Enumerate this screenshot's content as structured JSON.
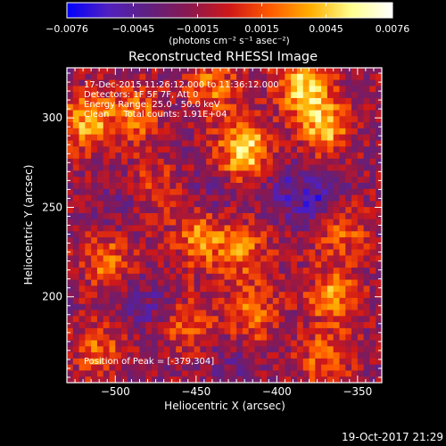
{
  "colorbar": {
    "ticks": [
      "−0.0076",
      "−0.0045",
      "−0.0015",
      "0.0015",
      "0.0045",
      "0.0076"
    ],
    "unit_label": "(photons cm⁻² s⁻¹ asec⁻²)"
  },
  "plot": {
    "title": "Reconstructed RHESSI Image",
    "annotations": [
      "17-Dec-2015 11:26:12.000 to 11:36:12.000",
      "Detectors: 1F 5F 7F, Att 0",
      "Energy Range: 25.0 - 50.0 keV",
      "Clean     Total counts: 1.91E+04"
    ],
    "peak_label": "Position of Peak = [-379,304]",
    "footer_date": "19-Oct-2017 21:29"
  },
  "chart_data": {
    "type": "heatmap",
    "title": "Reconstructed RHESSI Image",
    "xlabel": "Heliocentric X (arcsec)",
    "ylabel": "Heliocentric Y (arcsec)",
    "xlim": [
      -530,
      -335
    ],
    "ylim": [
      152,
      328
    ],
    "x_ticks": [
      -500,
      -450,
      -400,
      -350
    ],
    "x_tick_labels": [
      "−500",
      "−450",
      "−400",
      "−350"
    ],
    "y_ticks": [
      200,
      250,
      300
    ],
    "y_tick_labels": [
      "200",
      "250",
      "300"
    ],
    "color_range": [
      -0.0076,
      0.0076
    ],
    "colormap": [
      "#0000ff",
      "#5020c0",
      "#602080",
      "#8a1850",
      "#d01818",
      "#ff5a00",
      "#ffb000",
      "#ffff90",
      "#ffffff"
    ],
    "peak_position": [
      -379,
      304
    ],
    "sources": [
      {
        "x": -420,
        "y": 282,
        "intensity": 0.0072
      },
      {
        "x": -384,
        "y": 318,
        "intensity": 0.0068
      },
      {
        "x": -370,
        "y": 295,
        "intensity": 0.006
      },
      {
        "x": -517,
        "y": 298,
        "intensity": 0.0055
      },
      {
        "x": -487,
        "y": 302,
        "intensity": 0.004
      },
      {
        "x": -440,
        "y": 317,
        "intensity": 0.004
      },
      {
        "x": -447,
        "y": 233,
        "intensity": 0.005
      },
      {
        "x": -420,
        "y": 225,
        "intensity": 0.004
      },
      {
        "x": -360,
        "y": 235,
        "intensity": 0.0035
      },
      {
        "x": -505,
        "y": 220,
        "intensity": 0.004
      },
      {
        "x": -365,
        "y": 200,
        "intensity": 0.0048
      },
      {
        "x": -415,
        "y": 190,
        "intensity": 0.004
      },
      {
        "x": -455,
        "y": 185,
        "intensity": 0.0036
      },
      {
        "x": -510,
        "y": 170,
        "intensity": 0.0038
      },
      {
        "x": -370,
        "y": 165,
        "intensity": 0.0038
      },
      {
        "x": -475,
        "y": 262,
        "intensity": 0.0025
      },
      {
        "x": -395,
        "y": 260,
        "intensity": -0.002
      },
      {
        "x": -440,
        "y": 255,
        "intensity": -0.0015
      },
      {
        "x": -480,
        "y": 195,
        "intensity": -0.002
      },
      {
        "x": -375,
        "y": 255,
        "intensity": -0.003
      },
      {
        "x": -500,
        "y": 250,
        "intensity": -0.0012
      },
      {
        "x": -430,
        "y": 160,
        "intensity": -0.0015
      }
    ]
  }
}
